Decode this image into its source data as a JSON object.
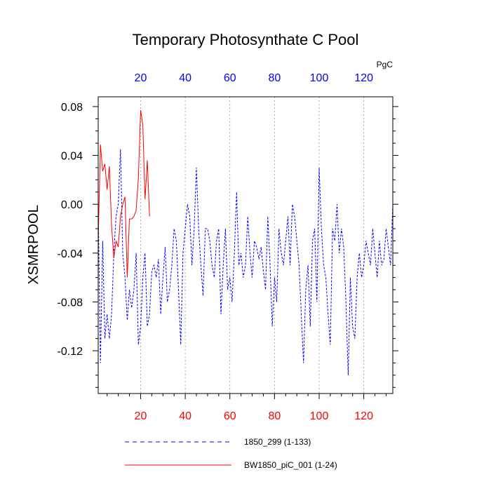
{
  "chart_data": {
    "type": "line",
    "title": "Temporary Photosynthate C Pool",
    "ylabel": "XSMRPOOL",
    "unit_label": "PgC",
    "xlim": [
      1,
      133
    ],
    "ylim": [
      -0.155,
      0.088
    ],
    "yticks": [
      0.08,
      0.04,
      0.0,
      -0.04,
      -0.08,
      -0.12
    ],
    "ytick_labels": [
      "0.08",
      "0.04",
      "0.00",
      "-0.04",
      "-0.08",
      "-0.12"
    ],
    "xticks_bottom": [
      20,
      40,
      60,
      80,
      100,
      120
    ],
    "xticks_top": [
      20,
      40,
      60,
      80,
      100,
      120
    ],
    "grid": "dotted vertical lines at top-axis ticks",
    "series": [
      {
        "name": "1850_299 (1-133)",
        "color": "#0000ff",
        "style": "dashed",
        "x": [
          1,
          2,
          3,
          4,
          5,
          6,
          7,
          8,
          9,
          10,
          11,
          12,
          13,
          14,
          15,
          16,
          17,
          18,
          19,
          20,
          21,
          22,
          23,
          24,
          25,
          26,
          27,
          28,
          29,
          30,
          31,
          32,
          33,
          34,
          35,
          36,
          37,
          38,
          39,
          40,
          41,
          42,
          43,
          44,
          45,
          46,
          47,
          48,
          49,
          50,
          51,
          52,
          53,
          54,
          55,
          56,
          57,
          58,
          59,
          60,
          61,
          62,
          63,
          64,
          65,
          66,
          67,
          68,
          69,
          70,
          71,
          72,
          73,
          74,
          75,
          76,
          77,
          78,
          79,
          80,
          81,
          82,
          83,
          84,
          85,
          86,
          87,
          88,
          89,
          90,
          91,
          92,
          93,
          94,
          95,
          96,
          97,
          98,
          99,
          100,
          101,
          102,
          103,
          104,
          105,
          106,
          107,
          108,
          109,
          110,
          111,
          112,
          113,
          114,
          115,
          116,
          117,
          118,
          119,
          120,
          121,
          122,
          123,
          124,
          125,
          126,
          127,
          128,
          129,
          130,
          131,
          132,
          133
        ],
        "values": [
          0.0,
          -0.13,
          -0.03,
          -0.11,
          -0.09,
          -0.11,
          -0.09,
          -0.04,
          -0.01,
          0.0,
          0.045,
          -0.04,
          -0.06,
          -0.095,
          -0.07,
          -0.085,
          -0.07,
          -0.04,
          -0.115,
          -0.1,
          -0.06,
          -0.04,
          -0.1,
          -0.09,
          -0.055,
          -0.05,
          -0.06,
          -0.045,
          -0.09,
          -0.06,
          -0.035,
          -0.08,
          -0.07,
          -0.05,
          -0.02,
          -0.03,
          -0.07,
          -0.115,
          -0.04,
          -0.02,
          0.0,
          -0.01,
          -0.05,
          -0.02,
          0.03,
          -0.02,
          -0.05,
          -0.075,
          -0.02,
          -0.02,
          -0.03,
          -0.05,
          -0.06,
          -0.03,
          -0.02,
          -0.09,
          -0.05,
          -0.02,
          -0.07,
          -0.06,
          -0.08,
          -0.04,
          0.01,
          -0.05,
          -0.04,
          -0.06,
          -0.05,
          -0.01,
          -0.04,
          -0.06,
          -0.03,
          -0.035,
          -0.045,
          -0.035,
          -0.055,
          -0.07,
          -0.01,
          -0.05,
          -0.1,
          -0.06,
          -0.08,
          -0.02,
          -0.04,
          -0.05,
          -0.03,
          -0.01,
          -0.05,
          0.0,
          -0.01,
          -0.03,
          -0.05,
          -0.09,
          -0.13,
          -0.07,
          -0.05,
          -0.1,
          -0.03,
          -0.02,
          -0.08,
          0.03,
          -0.02,
          -0.05,
          -0.06,
          -0.09,
          -0.115,
          -0.02,
          -0.03,
          0.0,
          -0.04,
          -0.02,
          -0.035,
          -0.08,
          -0.14,
          -0.06,
          -0.1,
          -0.11,
          -0.06,
          -0.04,
          -0.06,
          -0.05,
          -0.03,
          -0.04,
          -0.05,
          -0.02,
          -0.04,
          -0.06,
          -0.03,
          -0.05,
          -0.045,
          -0.02,
          -0.035,
          -0.05,
          0.0
        ]
      },
      {
        "name": "BW1850_piC_001 (1-24)",
        "color": "#ff0000",
        "style": "solid",
        "x": [
          1,
          2,
          3,
          4,
          5,
          6,
          7,
          8,
          9,
          10,
          11,
          12,
          13,
          14,
          15,
          16,
          17,
          18,
          19,
          20,
          21,
          22,
          23,
          24
        ],
        "values": [
          -0.03,
          0.049,
          0.027,
          0.033,
          0.012,
          0.031,
          -0.018,
          -0.044,
          -0.03,
          -0.035,
          -0.01,
          0.0,
          0.006,
          -0.06,
          -0.012,
          -0.012,
          -0.01,
          -0.005,
          0.022,
          0.077,
          0.065,
          0.004,
          0.036,
          -0.01
        ]
      }
    ],
    "legend": {
      "placement": "bottom",
      "entries": [
        "1850_299 (1-133)",
        "BW1850_piC_001 (1-24)"
      ]
    }
  }
}
